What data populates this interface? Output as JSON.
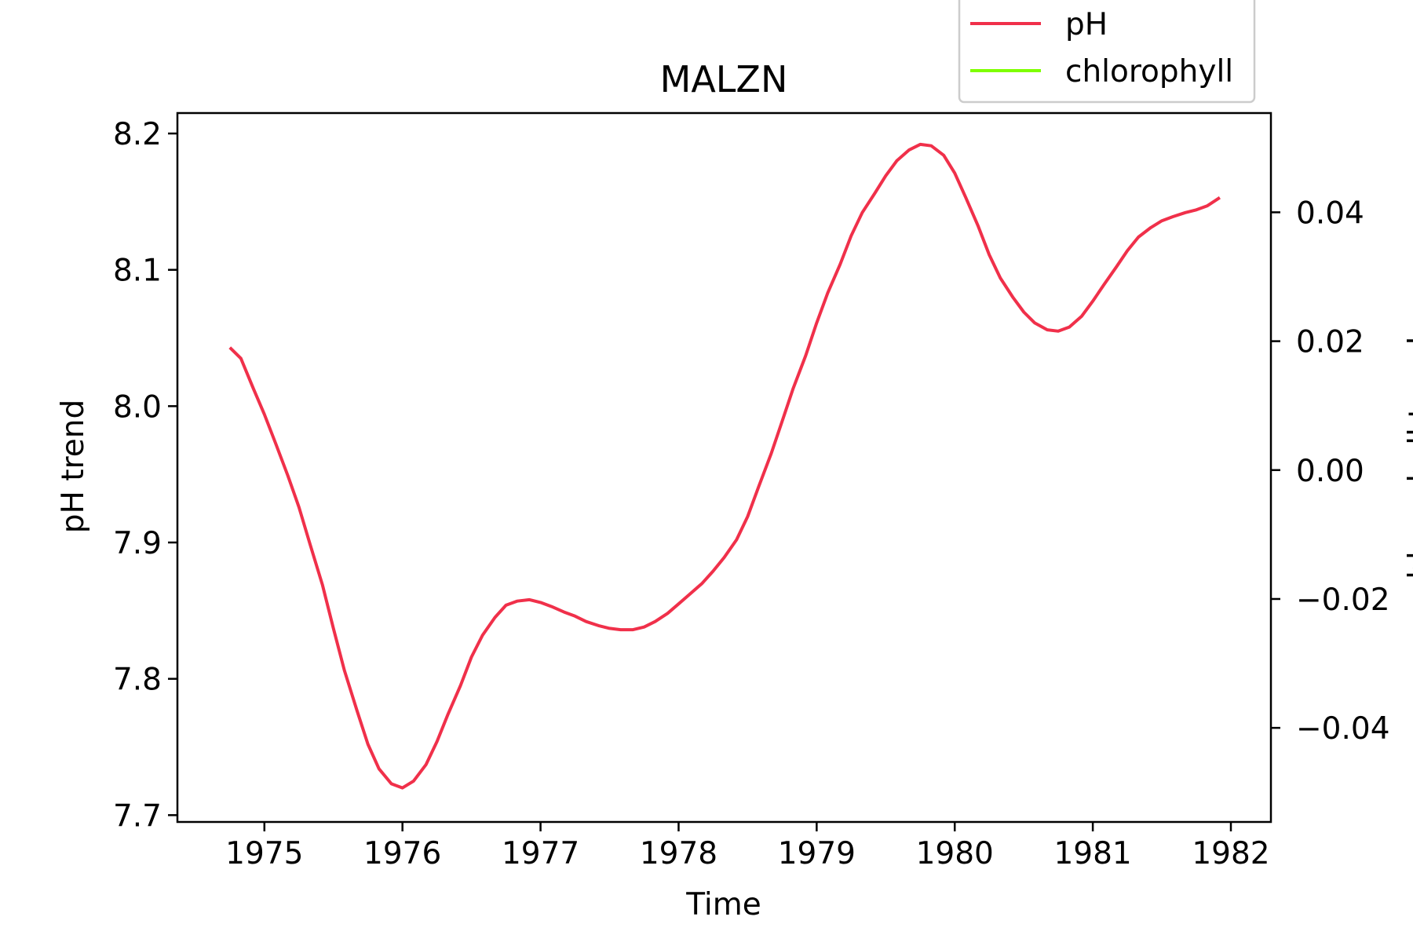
{
  "chart_data": {
    "type": "line",
    "title": "MALZN",
    "xlabel": "Time",
    "ylabel": "pH trend",
    "y2label": "chlorophyll trend",
    "xlim": [
      1974.37,
      1982.29
    ],
    "ylim": [
      7.695,
      8.215
    ],
    "y2lim": [
      -0.0546,
      0.0554
    ],
    "x_ticks": [
      1975,
      1976,
      1977,
      1978,
      1979,
      1980,
      1981,
      1982
    ],
    "y_ticks": [
      7.7,
      7.8,
      7.9,
      8.0,
      8.1,
      8.2
    ],
    "y_tick_labels": [
      "7.7",
      "7.8",
      "7.9",
      "8.0",
      "8.1",
      "8.2"
    ],
    "y2_ticks": [
      -0.04,
      -0.02,
      0.0,
      0.02,
      0.04
    ],
    "y2_tick_labels": [
      "−0.04",
      "−0.02",
      "0.00",
      "0.02",
      "0.04"
    ],
    "grid": false,
    "legend_position": "top-right",
    "series": [
      {
        "name": "pH",
        "color": "#f0304a",
        "axis": "left",
        "x": [
          1974.75,
          1974.83,
          1974.92,
          1975.0,
          1975.08,
          1975.17,
          1975.25,
          1975.33,
          1975.42,
          1975.5,
          1975.58,
          1975.67,
          1975.75,
          1975.83,
          1975.92,
          1976.0,
          1976.08,
          1976.17,
          1976.25,
          1976.33,
          1976.42,
          1976.5,
          1976.58,
          1976.67,
          1976.75,
          1976.83,
          1976.92,
          1977.0,
          1977.08,
          1977.17,
          1977.25,
          1977.33,
          1977.42,
          1977.5,
          1977.58,
          1977.67,
          1977.75,
          1977.83,
          1977.92,
          1978.0,
          1978.08,
          1978.17,
          1978.25,
          1978.33,
          1978.42,
          1978.5,
          1978.58,
          1978.67,
          1978.75,
          1978.83,
          1978.92,
          1979.0,
          1979.08,
          1979.17,
          1979.25,
          1979.33,
          1979.42,
          1979.5,
          1979.58,
          1979.67,
          1979.75,
          1979.83,
          1979.92,
          1980.0,
          1980.08,
          1980.17,
          1980.25,
          1980.33,
          1980.42,
          1980.5,
          1980.58,
          1980.67,
          1980.75,
          1980.83,
          1980.92,
          1981.0,
          1981.08,
          1981.17,
          1981.25,
          1981.33,
          1981.42,
          1981.5,
          1981.58,
          1981.67,
          1981.75,
          1981.83,
          1981.92
        ],
        "values": [
          8.043,
          8.035,
          8.013,
          7.994,
          7.973,
          7.949,
          7.926,
          7.899,
          7.869,
          7.837,
          7.806,
          7.777,
          7.752,
          7.734,
          7.723,
          7.72,
          7.725,
          7.737,
          7.754,
          7.774,
          7.795,
          7.816,
          7.832,
          7.845,
          7.854,
          7.857,
          7.858,
          7.856,
          7.853,
          7.849,
          7.846,
          7.842,
          7.839,
          7.837,
          7.836,
          7.836,
          7.838,
          7.842,
          7.848,
          7.855,
          7.862,
          7.87,
          7.879,
          7.889,
          7.902,
          7.919,
          7.941,
          7.965,
          7.989,
          8.013,
          8.037,
          8.061,
          8.083,
          8.104,
          8.125,
          8.142,
          8.156,
          8.169,
          8.18,
          8.188,
          8.192,
          8.191,
          8.184,
          8.171,
          8.153,
          8.132,
          8.111,
          8.094,
          8.08,
          8.069,
          8.061,
          8.056,
          8.055,
          8.058,
          8.066,
          8.077,
          8.089,
          8.102,
          8.114,
          8.124,
          8.131,
          8.136,
          8.139,
          8.142,
          8.144,
          8.147,
          8.153
        ]
      },
      {
        "name": "chlorophyll",
        "color": "#7fff00",
        "axis": "right",
        "x": [],
        "values": []
      }
    ]
  }
}
